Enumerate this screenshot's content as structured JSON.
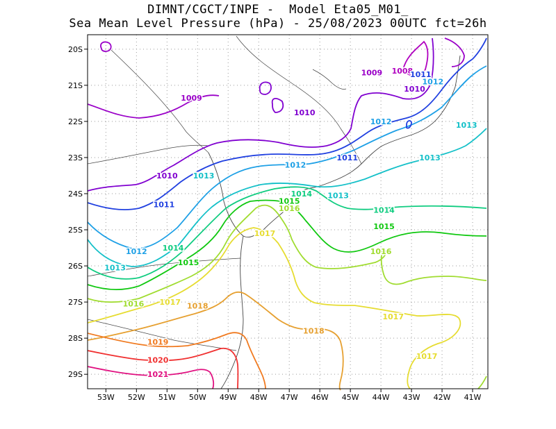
{
  "title": {
    "line1": "DIMNT/CGCT/INPE -  Model Eta05_M01_",
    "line2": "Sea Mean Level Pressure (hPa) - 25/08/2023 00UTC fct=26h"
  },
  "axes": {
    "lat_labels": [
      "20S",
      "21S",
      "22S",
      "23S",
      "24S",
      "25S",
      "26S",
      "27S",
      "28S",
      "29S"
    ],
    "lon_labels": [
      "53W",
      "52W",
      "51W",
      "50W",
      "49W",
      "48W",
      "47W",
      "46W",
      "45W",
      "44W",
      "43W",
      "42W",
      "41W"
    ],
    "lat_range": [
      -29.4,
      -19.6
    ],
    "lon_range": [
      -53.6,
      -40.5
    ],
    "grid": true,
    "grid_style": "dotted"
  },
  "isobars": [
    {
      "value": 1008,
      "color": "#b000c0"
    },
    {
      "value": 1009,
      "color": "#9a00c8"
    },
    {
      "value": 1010,
      "color": "#8000d0"
    },
    {
      "value": 1011,
      "color": "#2040e0"
    },
    {
      "value": 1012,
      "color": "#1ea0e6"
    },
    {
      "value": 1013,
      "color": "#14c0c8"
    },
    {
      "value": 1014,
      "color": "#10cc80"
    },
    {
      "value": 1015,
      "color": "#10c810"
    },
    {
      "value": 1016,
      "color": "#a0dc30"
    },
    {
      "value": 1017,
      "color": "#e6dc30"
    },
    {
      "value": 1018,
      "color": "#e6a030"
    },
    {
      "value": 1019,
      "color": "#f07a20"
    },
    {
      "value": 1020,
      "color": "#f03030"
    },
    {
      "value": 1021,
      "color": "#e01080"
    }
  ],
  "contour_labels": [
    {
      "text": "1008",
      "color": "#b000c0",
      "lon": -43.3,
      "lat": -20.6
    },
    {
      "text": "1009",
      "color": "#9a00c8",
      "lon": -44.3,
      "lat": -20.65
    },
    {
      "text": "1009",
      "color": "#9a00c8",
      "lon": -50.2,
      "lat": -21.35
    },
    {
      "text": "1010",
      "color": "#8000d0",
      "lon": -46.5,
      "lat": -21.75
    },
    {
      "text": "1010",
      "color": "#8000d0",
      "lon": -42.9,
      "lat": -21.1
    },
    {
      "text": "1010",
      "color": "#8000d0",
      "lon": -51.0,
      "lat": -23.5
    },
    {
      "text": "1011",
      "color": "#2040e0",
      "lon": -42.7,
      "lat": -20.7
    },
    {
      "text": "1011",
      "color": "#2040e0",
      "lon": -45.1,
      "lat": -23.0
    },
    {
      "text": "1011",
      "color": "#2040e0",
      "lon": -51.1,
      "lat": -24.3
    },
    {
      "text": "1012",
      "color": "#1ea0e6",
      "lon": -42.3,
      "lat": -20.9
    },
    {
      "text": "1012",
      "color": "#1ea0e6",
      "lon": -44.0,
      "lat": -22.0
    },
    {
      "text": "1012",
      "color": "#1ea0e6",
      "lon": -46.8,
      "lat": -23.2
    },
    {
      "text": "1012",
      "color": "#1ea0e6",
      "lon": -52.0,
      "lat": -25.6
    },
    {
      "text": "1013",
      "color": "#14c0c8",
      "lon": -41.2,
      "lat": -22.1
    },
    {
      "text": "1013",
      "color": "#14c0c8",
      "lon": -42.4,
      "lat": -23.0
    },
    {
      "text": "1013",
      "color": "#14c0c8",
      "lon": -45.4,
      "lat": -24.05
    },
    {
      "text": "1013",
      "color": "#14c0c8",
      "lon": -49.8,
      "lat": -23.5
    },
    {
      "text": "1013",
      "color": "#14c0c8",
      "lon": -52.7,
      "lat": -26.05
    },
    {
      "text": "1014",
      "color": "#10cc80",
      "lon": -43.9,
      "lat": -24.45
    },
    {
      "text": "1014",
      "color": "#10cc80",
      "lon": -46.6,
      "lat": -24.0
    },
    {
      "text": "1014",
      "color": "#10cc80",
      "lon": -50.8,
      "lat": -25.5
    },
    {
      "text": "1015",
      "color": "#10c810",
      "lon": -43.9,
      "lat": -24.9
    },
    {
      "text": "1015",
      "color": "#10c810",
      "lon": -47.0,
      "lat": -24.2
    },
    {
      "text": "1015",
      "color": "#10c810",
      "lon": -50.3,
      "lat": -25.9
    },
    {
      "text": "1016",
      "color": "#a0dc30",
      "lon": -44.0,
      "lat": -25.6
    },
    {
      "text": "1016",
      "color": "#a0dc30",
      "lon": -47.0,
      "lat": -24.4
    },
    {
      "text": "1016",
      "color": "#a0dc30",
      "lon": -52.1,
      "lat": -27.05
    },
    {
      "text": "1017",
      "color": "#e6dc30",
      "lon": -47.8,
      "lat": -25.1
    },
    {
      "text": "1017",
      "color": "#e6dc30",
      "lon": -50.9,
      "lat": -27.0
    },
    {
      "text": "1017",
      "color": "#e6dc30",
      "lon": -43.6,
      "lat": -27.4
    },
    {
      "text": "1017",
      "color": "#e6dc30",
      "lon": -42.5,
      "lat": -28.5
    },
    {
      "text": "1018",
      "color": "#e6a030",
      "lon": -50.0,
      "lat": -27.1
    },
    {
      "text": "1018",
      "color": "#e6a030",
      "lon": -46.2,
      "lat": -27.8
    },
    {
      "text": "1019",
      "color": "#f07a20",
      "lon": -51.3,
      "lat": -28.1
    },
    {
      "text": "1020",
      "color": "#f03030",
      "lon": -51.3,
      "lat": -28.6
    },
    {
      "text": "1021",
      "color": "#e01080",
      "lon": -51.3,
      "lat": -29.0
    }
  ]
}
